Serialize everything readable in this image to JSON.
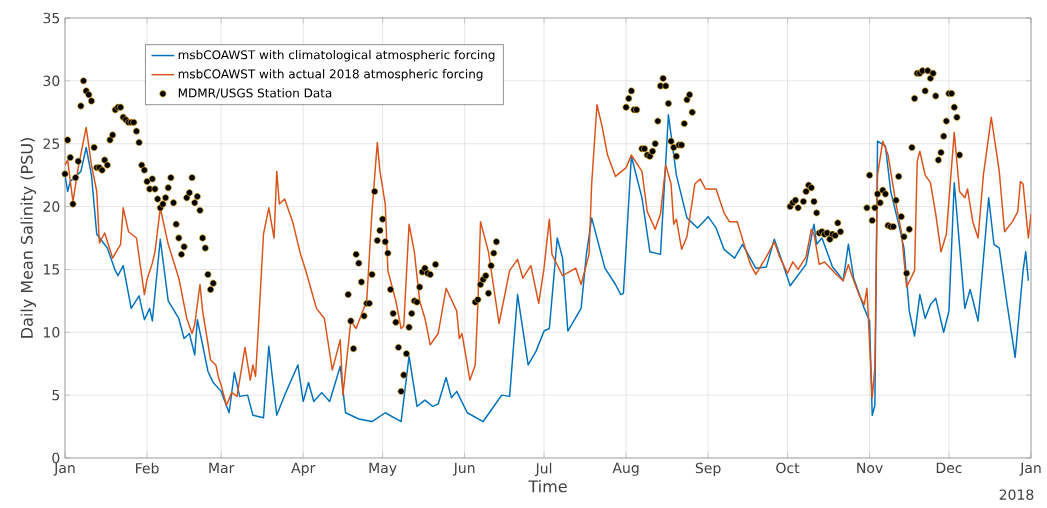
{
  "chart_data": {
    "type": "line",
    "xlabel": "Time",
    "ylabel": "Daily Mean Salinity (PSU)",
    "xlim": [
      "2018-01-01",
      "2019-01-01"
    ],
    "ylim": [
      0,
      35
    ],
    "yticks": [
      0,
      5,
      10,
      15,
      20,
      25,
      30,
      35
    ],
    "xticks": [
      {
        "value": "2018-01-01",
        "label": "Jan"
      },
      {
        "value": "2018-02-01",
        "label": "Feb"
      },
      {
        "value": "2018-03-01",
        "label": "Mar"
      },
      {
        "value": "2018-04-01",
        "label": "Apr"
      },
      {
        "value": "2018-05-01",
        "label": "May"
      },
      {
        "value": "2018-06-01",
        "label": "Jun"
      },
      {
        "value": "2018-07-01",
        "label": "Jul"
      },
      {
        "value": "2018-08-01",
        "label": "Aug"
      },
      {
        "value": "2018-09-01",
        "label": "Sep"
      },
      {
        "value": "2018-10-01",
        "label": "Oct"
      },
      {
        "value": "2018-11-01",
        "label": "Nov"
      },
      {
        "value": "2018-12-01",
        "label": "Dec"
      },
      {
        "value": "2019-01-01",
        "label": "Jan"
      }
    ],
    "grid": true,
    "legend": "top left",
    "annotations": [
      "2018"
    ],
    "series": [
      {
        "name": "msbCOAWST with climatological atmospheric forcing",
        "color": "#0072bd",
        "x": [
          "2018-01-01",
          "2018-01-02",
          "2018-01-03",
          "2018-01-07",
          "2018-01-09",
          "2018-01-11",
          "2018-01-13",
          "2018-01-17",
          "2018-01-20",
          "2018-01-21",
          "2018-01-23",
          "2018-01-26",
          "2018-01-29",
          "2018-01-31",
          "2018-02-02",
          "2018-02-03",
          "2018-02-06",
          "2018-02-09",
          "2018-02-13",
          "2018-02-15",
          "2018-02-17",
          "2018-02-19",
          "2018-02-20",
          "2018-02-22",
          "2018-02-24",
          "2018-02-26",
          "2018-03-01",
          "2018-03-04",
          "2018-03-06",
          "2018-03-08",
          "2018-03-11",
          "2018-03-13",
          "2018-03-17",
          "2018-03-19",
          "2018-03-22",
          "2018-03-25",
          "2018-03-30",
          "2018-04-01",
          "2018-04-03",
          "2018-04-05",
          "2018-04-08",
          "2018-04-11",
          "2018-04-15",
          "2018-04-17",
          "2018-04-22",
          "2018-04-27",
          "2018-05-02",
          "2018-05-08",
          "2018-05-11",
          "2018-05-14",
          "2018-05-17",
          "2018-05-20",
          "2018-05-22",
          "2018-05-25",
          "2018-05-27",
          "2018-05-29",
          "2018-06-02",
          "2018-06-08",
          "2018-06-11",
          "2018-06-15",
          "2018-06-18",
          "2018-06-21",
          "2018-06-25",
          "2018-06-28",
          "2018-07-01",
          "2018-07-03",
          "2018-07-06",
          "2018-07-08",
          "2018-07-10",
          "2018-07-15",
          "2018-07-17",
          "2018-07-19",
          "2018-07-24",
          "2018-07-28",
          "2018-07-30",
          "2018-07-31",
          "2018-08-03",
          "2018-08-07",
          "2018-08-10",
          "2018-08-14",
          "2018-08-17",
          "2018-08-20",
          "2018-08-24",
          "2018-08-28",
          "2018-09-01",
          "2018-09-04",
          "2018-09-07",
          "2018-09-11",
          "2018-09-14",
          "2018-09-19",
          "2018-09-23",
          "2018-09-26",
          "2018-09-29",
          "2018-10-02",
          "2018-10-08",
          "2018-10-11",
          "2018-10-12",
          "2018-10-14",
          "2018-10-18",
          "2018-10-20",
          "2018-10-22",
          "2018-10-24",
          "2018-10-26",
          "2018-10-30",
          "2018-11-01",
          "2018-11-02",
          "2018-11-03",
          "2018-11-04",
          "2018-11-07",
          "2018-11-09",
          "2018-11-12",
          "2018-11-14",
          "2018-11-16",
          "2018-11-18",
          "2018-11-20",
          "2018-11-22",
          "2018-11-24",
          "2018-11-26",
          "2018-11-29",
          "2018-12-01",
          "2018-12-03",
          "2018-12-07",
          "2018-12-09",
          "2018-12-12",
          "2018-12-16",
          "2018-12-18",
          "2018-12-20",
          "2018-12-23",
          "2018-12-26",
          "2018-12-29",
          "2018-12-30",
          "2018-12-31"
        ],
        "values": [
          22.5,
          21.2,
          22,
          22.8,
          24.7,
          22.5,
          17.8,
          16.7,
          14.9,
          14.5,
          15.3,
          11.9,
          12.9,
          11,
          11.9,
          10.9,
          17.4,
          12.5,
          11.1,
          9.5,
          9.9,
          8.2,
          11,
          9,
          6.9,
          6,
          5.3,
          3.6,
          6.8,
          4.9,
          5,
          3.4,
          3.2,
          8.9,
          3.4,
          5,
          7.4,
          4.5,
          6,
          4.5,
          5.2,
          4.5,
          7.3,
          3.6,
          3.1,
          2.9,
          3.6,
          2.9,
          8.1,
          4.1,
          4.6,
          4.1,
          4.3,
          6.4,
          4.8,
          5.3,
          3.6,
          2.9,
          3.8,
          5,
          4.9,
          13,
          7.4,
          8.5,
          10.1,
          10.3,
          17.5,
          15.9,
          10.1,
          11.9,
          16.2,
          19.1,
          15.1,
          13.8,
          13,
          13.1,
          24,
          20.7,
          16.4,
          16.2,
          27.3,
          22.5,
          19.1,
          18.3,
          19.2,
          18.3,
          16.6,
          15.9,
          17,
          15.1,
          15.2,
          17.4,
          15.6,
          13.7,
          15.4,
          18.6,
          17,
          17.5,
          15.2,
          14.7,
          14.1,
          17,
          14.3,
          11.9,
          10.9,
          3.4,
          4.2,
          25.2,
          24.8,
          21.2,
          18.6,
          16.7,
          11.7,
          9.7,
          13,
          11.1,
          12.2,
          12.7,
          10,
          11.7,
          21.9,
          11.9,
          13.4,
          10.9,
          20.7,
          17,
          16.7,
          12.2,
          8,
          14.9,
          16.4,
          14.1
        ]
      },
      {
        "name": "msbCOAWST with actual 2018 atmospheric forcing",
        "color": "#d95319",
        "x": [
          "2018-01-01",
          "2018-01-02",
          "2018-01-04",
          "2018-01-06",
          "2018-01-09",
          "2018-01-11",
          "2018-01-13",
          "2018-01-14",
          "2018-01-16",
          "2018-01-19",
          "2018-01-22",
          "2018-01-23",
          "2018-01-25",
          "2018-01-28",
          "2018-01-31",
          "2018-02-01",
          "2018-02-03",
          "2018-02-04",
          "2018-02-06",
          "2018-02-09",
          "2018-02-13",
          "2018-02-16",
          "2018-02-18",
          "2018-02-19",
          "2018-02-21",
          "2018-02-22",
          "2018-02-25",
          "2018-02-27",
          "2018-02-28",
          "2018-03-01",
          "2018-03-03",
          "2018-03-05",
          "2018-03-07",
          "2018-03-10",
          "2018-03-12",
          "2018-03-13",
          "2018-03-14",
          "2018-03-15",
          "2018-03-17",
          "2018-03-19",
          "2018-03-21",
          "2018-03-22",
          "2018-03-23",
          "2018-03-25",
          "2018-03-28",
          "2018-03-31",
          "2018-04-02",
          "2018-04-06",
          "2018-04-09",
          "2018-04-12",
          "2018-04-15",
          "2018-04-16",
          "2018-04-19",
          "2018-04-21",
          "2018-04-25",
          "2018-04-27",
          "2018-04-29",
          "2018-04-30",
          "2018-05-02",
          "2018-05-03",
          "2018-05-06",
          "2018-05-08",
          "2018-05-09",
          "2018-05-11",
          "2018-05-13",
          "2018-05-15",
          "2018-05-17",
          "2018-05-19",
          "2018-05-22",
          "2018-05-25",
          "2018-05-29",
          "2018-05-30",
          "2018-05-31",
          "2018-06-03",
          "2018-06-05",
          "2018-06-06",
          "2018-06-07",
          "2018-06-10",
          "2018-06-14",
          "2018-06-18",
          "2018-06-21",
          "2018-06-23",
          "2018-06-26",
          "2018-06-29",
          "2018-07-01",
          "2018-07-03",
          "2018-07-04",
          "2018-07-08",
          "2018-07-13",
          "2018-07-15",
          "2018-07-18",
          "2018-07-19",
          "2018-07-21",
          "2018-07-23",
          "2018-07-25",
          "2018-07-28",
          "2018-08-01",
          "2018-08-03",
          "2018-08-07",
          "2018-08-09",
          "2018-08-12",
          "2018-08-14",
          "2018-08-16",
          "2018-08-18",
          "2018-08-19",
          "2018-08-20",
          "2018-08-22",
          "2018-08-24",
          "2018-08-27",
          "2018-08-29",
          "2018-08-31",
          "2018-09-04",
          "2018-09-07",
          "2018-09-09",
          "2018-09-12",
          "2018-09-15",
          "2018-09-17",
          "2018-09-19",
          "2018-09-23",
          "2018-09-26",
          "2018-09-28",
          "2018-10-01",
          "2018-10-03",
          "2018-10-05",
          "2018-10-08",
          "2018-10-10",
          "2018-10-11",
          "2018-10-13",
          "2018-10-15",
          "2018-10-19",
          "2018-10-22",
          "2018-10-24",
          "2018-10-25",
          "2018-10-28",
          "2018-10-30",
          "2018-10-31",
          "2018-11-02",
          "2018-11-03",
          "2018-11-04",
          "2018-11-06",
          "2018-11-08",
          "2018-11-11",
          "2018-11-13",
          "2018-11-15",
          "2018-11-18",
          "2018-11-19",
          "2018-11-20",
          "2018-11-22",
          "2018-11-24",
          "2018-11-26",
          "2018-11-28",
          "2018-11-30",
          "2018-12-03",
          "2018-12-05",
          "2018-12-07",
          "2018-12-08",
          "2018-12-10",
          "2018-12-12",
          "2018-12-14",
          "2018-12-17",
          "2018-12-20",
          "2018-12-22",
          "2018-12-25",
          "2018-12-27",
          "2018-12-28",
          "2018-12-29",
          "2018-12-31",
          "2019-01-01"
        ],
        "values": [
          23.3,
          23.7,
          20.4,
          23.1,
          26.3,
          23.3,
          21.2,
          17.1,
          17.9,
          15.9,
          17,
          19.9,
          18,
          17.5,
          13,
          14.2,
          15.5,
          16.4,
          19.9,
          17,
          14.3,
          11.1,
          9.9,
          10.6,
          13.8,
          11.7,
          7.8,
          7.4,
          6.4,
          5.8,
          4.2,
          5.2,
          4.9,
          8.8,
          6.2,
          7.4,
          6.5,
          10.1,
          17.8,
          19.9,
          17.5,
          22.8,
          20.2,
          20.6,
          18.8,
          16.2,
          14.9,
          11.9,
          11.1,
          7,
          9.4,
          5,
          10.9,
          10.3,
          12.5,
          19.6,
          25.1,
          22.8,
          20.2,
          14.9,
          12.5,
          10.3,
          10.5,
          18.6,
          16.4,
          12.5,
          11.1,
          9,
          9.9,
          13.5,
          11.7,
          9.5,
          9.9,
          6.2,
          7.4,
          12.2,
          18.8,
          16.4,
          10.7,
          14.9,
          15.8,
          14.3,
          15.3,
          12.3,
          15.1,
          19,
          16.2,
          14.5,
          15.1,
          13.8,
          16.2,
          21.8,
          28.1,
          26.3,
          24.1,
          22.4,
          23.1,
          24.1,
          22.8,
          19.6,
          18.2,
          19.4,
          23.3,
          21.8,
          18.6,
          19,
          16.6,
          17.6,
          21.8,
          22.2,
          21.4,
          21.4,
          19.5,
          18.8,
          18.8,
          16.7,
          15.4,
          14.6,
          16,
          17.2,
          16,
          14.7,
          15.6,
          15,
          16,
          18.2,
          17.8,
          15.4,
          15.6,
          14.7,
          14.1,
          15.4,
          14.7,
          13,
          12.2,
          13.5,
          4.8,
          7.2,
          22.5,
          25.2,
          24.1,
          20.2,
          18,
          13.6,
          14.9,
          23.6,
          24.4,
          22.5,
          21.9,
          19.4,
          16.4,
          17.8,
          25.9,
          21.2,
          20.7,
          21.4,
          18.8,
          17.5,
          22.5,
          27.1,
          22.8,
          18,
          18.8,
          19.6,
          22,
          21.8,
          17.5,
          19.4
        ]
      },
      {
        "name": "MDMR/USGS Station Data",
        "color": "#000000",
        "type": "scatter",
        "marker": "circle",
        "x": [
          "2018-01-01",
          "2018-01-02",
          "2018-01-03",
          "2018-01-04",
          "2018-01-05",
          "2018-01-06",
          "2018-01-07",
          "2018-01-08",
          "2018-01-09",
          "2018-01-10",
          "2018-01-11",
          "2018-01-12",
          "2018-01-13",
          "2018-01-14",
          "2018-01-15",
          "2018-01-16",
          "2018-01-17",
          "2018-01-18",
          "2018-01-19",
          "2018-01-20",
          "2018-01-21",
          "2018-01-22",
          "2018-01-23",
          "2018-01-24",
          "2018-01-25",
          "2018-01-26",
          "2018-01-27",
          "2018-01-28",
          "2018-01-29",
          "2018-01-30",
          "2018-01-31",
          "2018-02-01",
          "2018-02-02",
          "2018-02-03",
          "2018-02-04",
          "2018-02-05",
          "2018-02-06",
          "2018-02-07",
          "2018-02-08",
          "2018-02-09",
          "2018-02-10",
          "2018-02-11",
          "2018-02-12",
          "2018-02-13",
          "2018-02-14",
          "2018-02-15",
          "2018-02-16",
          "2018-02-17",
          "2018-02-18",
          "2018-02-19",
          "2018-02-20",
          "2018-02-21",
          "2018-02-22",
          "2018-02-23",
          "2018-02-24",
          "2018-02-25",
          "2018-02-26",
          "2018-04-18",
          "2018-04-19",
          "2018-04-20",
          "2018-04-21",
          "2018-04-22",
          "2018-04-23",
          "2018-04-24",
          "2018-04-25",
          "2018-04-26",
          "2018-04-27",
          "2018-04-28",
          "2018-04-29",
          "2018-04-30",
          "2018-05-01",
          "2018-05-02",
          "2018-05-03",
          "2018-05-04",
          "2018-05-05",
          "2018-05-06",
          "2018-05-07",
          "2018-05-08",
          "2018-05-09",
          "2018-05-10",
          "2018-05-11",
          "2018-05-12",
          "2018-05-13",
          "2018-05-14",
          "2018-05-15",
          "2018-05-16",
          "2018-05-17",
          "2018-05-18",
          "2018-05-19",
          "2018-05-21",
          "2018-06-05",
          "2018-06-06",
          "2018-06-07",
          "2018-06-08",
          "2018-06-09",
          "2018-06-10",
          "2018-06-11",
          "2018-06-12",
          "2018-06-13",
          "2018-08-01",
          "2018-08-02",
          "2018-08-03",
          "2018-08-04",
          "2018-08-05",
          "2018-08-07",
          "2018-08-08",
          "2018-08-09",
          "2018-08-10",
          "2018-08-11",
          "2018-08-12",
          "2018-08-13",
          "2018-08-14",
          "2018-08-15",
          "2018-08-16",
          "2018-08-17",
          "2018-08-18",
          "2018-08-19",
          "2018-08-20",
          "2018-08-21",
          "2018-08-22",
          "2018-08-23",
          "2018-08-24",
          "2018-08-25",
          "2018-08-26",
          "2018-10-02",
          "2018-10-03",
          "2018-10-04",
          "2018-10-05",
          "2018-10-07",
          "2018-10-08",
          "2018-10-09",
          "2018-10-10",
          "2018-10-11",
          "2018-10-12",
          "2018-10-13",
          "2018-10-14",
          "2018-10-15",
          "2018-10-16",
          "2018-10-17",
          "2018-10-18",
          "2018-10-19",
          "2018-10-20",
          "2018-10-21",
          "2018-10-31",
          "2018-11-01",
          "2018-11-02",
          "2018-11-03",
          "2018-11-04",
          "2018-11-05",
          "2018-11-06",
          "2018-11-07",
          "2018-11-08",
          "2018-11-09",
          "2018-11-10",
          "2018-11-11",
          "2018-11-12",
          "2018-11-13",
          "2018-11-14",
          "2018-11-15",
          "2018-11-16",
          "2018-11-17",
          "2018-11-18",
          "2018-11-19",
          "2018-11-20",
          "2018-11-21",
          "2018-11-22",
          "2018-11-23",
          "2018-11-24",
          "2018-11-25",
          "2018-11-26",
          "2018-11-27",
          "2018-11-28",
          "2018-11-29",
          "2018-11-30",
          "2018-12-01",
          "2018-12-02",
          "2018-12-03",
          "2018-12-04",
          "2018-12-05"
        ],
        "values": [
          22.6,
          25.3,
          23.9,
          20.2,
          22.3,
          23.6,
          28,
          30,
          29.2,
          28.9,
          28.4,
          24.7,
          23.1,
          23.1,
          22.9,
          23.7,
          23.3,
          25.3,
          25.7,
          27.7,
          27.9,
          27.9,
          27.1,
          26.9,
          26.7,
          26.7,
          26.7,
          26,
          25.1,
          23.3,
          22.9,
          22,
          21.4,
          22.2,
          21.4,
          20.6,
          19.9,
          20.2,
          20.7,
          21.5,
          22.3,
          20.3,
          18.6,
          17.5,
          16.2,
          16.8,
          20.7,
          21.1,
          22.3,
          20.3,
          20.8,
          19.7,
          17.5,
          16.7,
          14.6,
          13.4,
          13.9,
          13,
          10.9,
          8.7,
          16.2,
          15.5,
          14,
          11.3,
          12.3,
          12.3,
          14.6,
          21.2,
          17.3,
          18.1,
          19,
          17.2,
          16.3,
          13.4,
          11.5,
          10.8,
          8.8,
          5.3,
          6.6,
          8.3,
          10.4,
          11.5,
          12.5,
          12.4,
          13.6,
          14.8,
          15.1,
          14.7,
          14.6,
          15.4,
          12.4,
          12.6,
          13.8,
          14.2,
          14.5,
          13.1,
          15.3,
          16.3,
          17.2,
          27.9,
          28.6,
          29.2,
          27.7,
          27.7,
          24.6,
          24.6,
          24.1,
          24,
          24.4,
          25,
          26.8,
          29.6,
          30.2,
          29.6,
          28.2,
          25.2,
          24.7,
          24,
          24.9,
          24.9,
          26.6,
          28.5,
          28.9,
          27.5,
          20,
          20.3,
          20.5,
          19.9,
          20.4,
          21.2,
          21.7,
          21.5,
          20.4,
          19.5,
          17.9,
          18,
          17.8,
          17.9,
          17.4,
          17.8,
          17.7,
          18.7,
          18,
          19.9,
          22.5,
          18.9,
          19.9,
          21,
          20.3,
          21.3,
          21,
          18.5,
          18.4,
          18.4,
          20.5,
          22.4,
          19.2,
          17.6,
          14.7,
          18.2,
          24.7,
          28.6,
          30.6,
          30.6,
          30.8,
          29.2,
          30.8,
          30.2,
          30.6,
          28.8,
          23.7,
          24.3,
          25.6,
          26.8,
          29,
          29,
          27.9,
          27.1,
          24.1
        ]
      }
    ]
  }
}
